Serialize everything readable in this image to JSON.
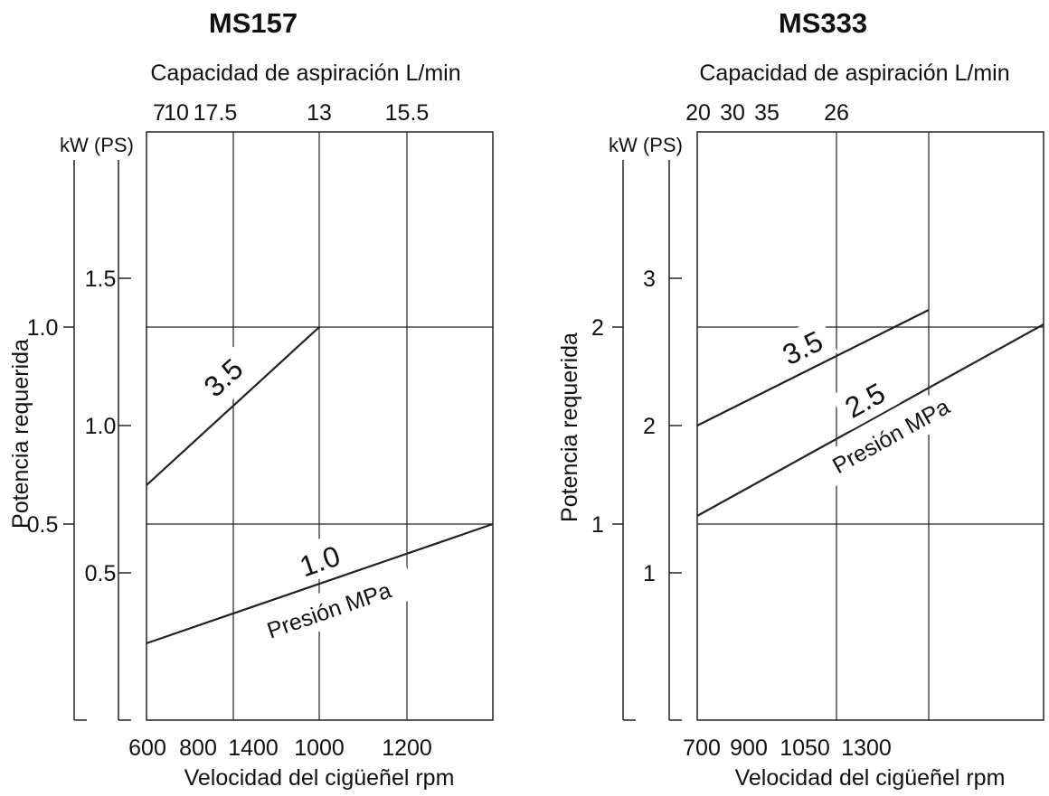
{
  "chart_data": [
    {
      "type": "line",
      "title": "MS157",
      "top_axis_label": "Capacidad de aspiración L/min",
      "top_ticks": [
        "7",
        "10",
        "17.5",
        "13",
        "15.5"
      ],
      "xlabel": "Velocidad del cigüeñel rpm",
      "x_ticks": [
        "600",
        "800",
        "1400",
        "1000",
        "1200"
      ],
      "ylabel": "Potencia requerida",
      "y_unit_label": "kW (PS)",
      "kw_ticks": [
        "1.0",
        "0.5"
      ],
      "ps_ticks": [
        "1.5",
        "1.0",
        "0.5"
      ],
      "series": [
        {
          "name": "3.5",
          "x": [
            600,
            1000
          ],
          "y": [
            0.58,
            0.85
          ]
        },
        {
          "name": "1.0",
          "x": [
            600,
            1400
          ],
          "y": [
            0.28,
            0.5
          ]
        }
      ],
      "annotation": "Presión MPa"
    },
    {
      "type": "line",
      "title": "MS333",
      "top_axis_label": "Capacidad de aspiración L/min",
      "top_ticks": [
        "20",
        "30",
        "35",
        "26"
      ],
      "xlabel": "Velocidad del cigüeñel rpm",
      "x_ticks": [
        "700",
        "900",
        "1050",
        "1300"
      ],
      "ylabel": "Potencia requerida",
      "y_unit_label": "kW (PS)",
      "kw_ticks": [
        "2",
        "1"
      ],
      "ps_ticks": [
        "3",
        "2",
        "1"
      ],
      "series": [
        {
          "name": "3.5",
          "x": [
            700,
            1350
          ],
          "y": [
            2.0,
            2.35
          ]
        },
        {
          "name": "2.5",
          "x": [
            700,
            1600
          ],
          "y": [
            1.17,
            2.36
          ]
        }
      ],
      "annotation": "Presión MPa"
    }
  ]
}
